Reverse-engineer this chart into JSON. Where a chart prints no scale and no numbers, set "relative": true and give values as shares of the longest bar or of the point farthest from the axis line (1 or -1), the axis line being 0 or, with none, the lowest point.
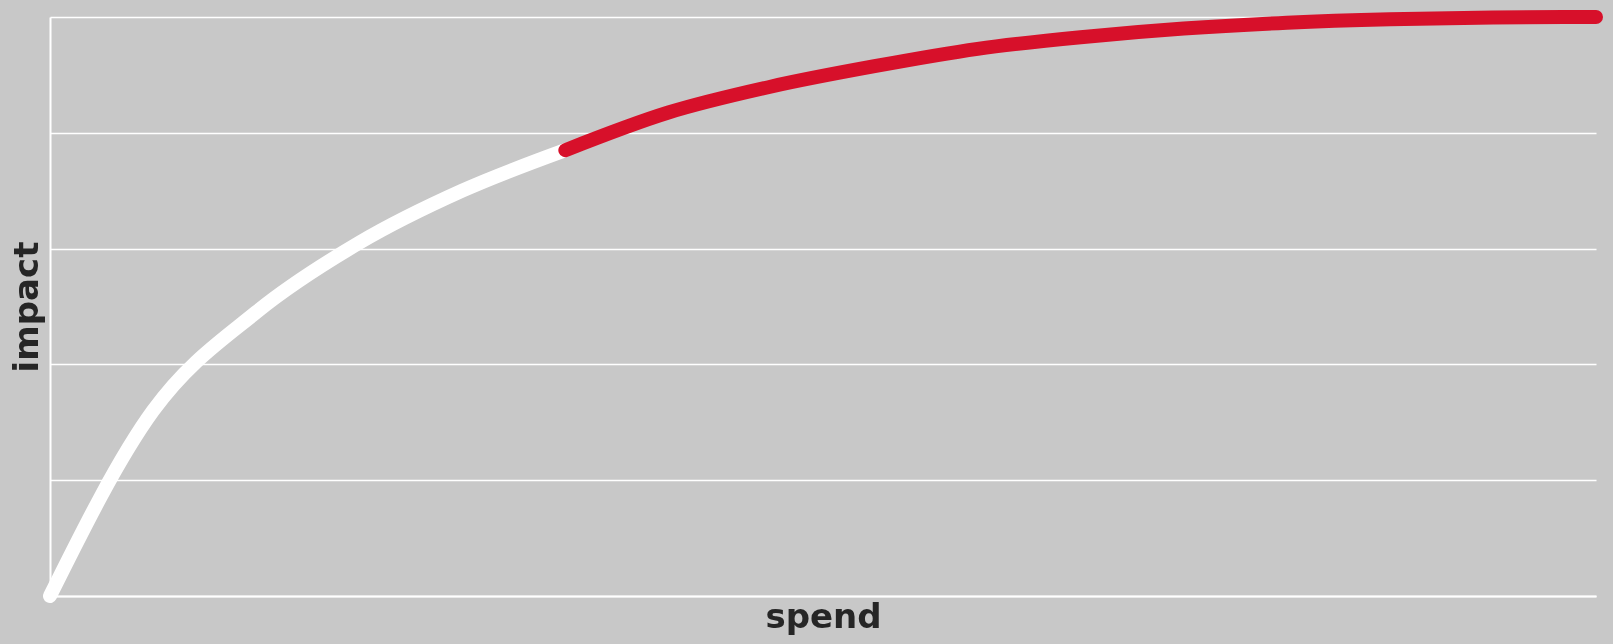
{
  "chart_data": {
    "type": "line",
    "relative": true,
    "xlabel": "spend",
    "ylabel": "impact",
    "grid": "y",
    "legend": false,
    "categories": [
      null,
      null,
      null,
      null,
      null,
      null,
      null,
      null,
      null,
      null,
      null,
      null,
      null,
      null,
      null,
      null
    ],
    "series": [
      {
        "color": "#ffffff",
        "values": [
          0,
          0.32,
          0.49,
          0.61,
          0.7,
          0.77,
          null,
          null,
          null,
          null,
          null,
          null,
          null,
          null,
          null,
          null
        ]
      },
      {
        "color": "#d7102a",
        "values": [
          null,
          null,
          null,
          null,
          null,
          0.77,
          0.835,
          0.88,
          0.915,
          0.945,
          0.965,
          0.98,
          0.99,
          0.996,
          0.999,
          1.0
        ]
      }
    ]
  }
}
